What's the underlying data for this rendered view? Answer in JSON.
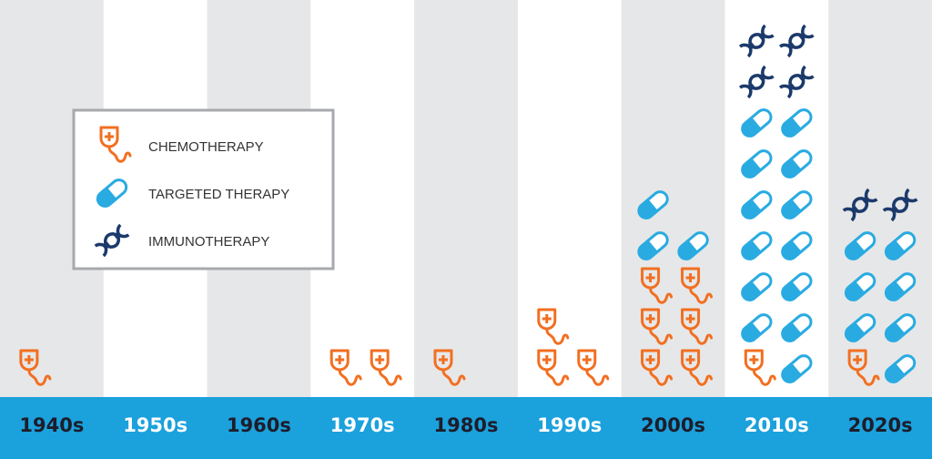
{
  "chart_data": {
    "type": "pictogram",
    "categories": [
      "1940s",
      "1950s",
      "1960s",
      "1970s",
      "1980s",
      "1990s",
      "2000s",
      "2010s",
      "2020s"
    ],
    "series": [
      {
        "name": "CHEMOTHERAPY",
        "color": "#f26f21",
        "values": [
          1,
          0,
          0,
          2,
          1,
          3,
          6,
          1,
          1
        ]
      },
      {
        "name": "TARGETED THERAPY",
        "color": "#29abe2",
        "values": [
          0,
          0,
          0,
          0,
          0,
          0,
          3,
          13,
          7
        ]
      },
      {
        "name": "IMMUNOTHERAPY",
        "color": "#1b3a6b",
        "values": [
          0,
          0,
          0,
          0,
          0,
          0,
          0,
          4,
          2
        ]
      }
    ]
  }
}
